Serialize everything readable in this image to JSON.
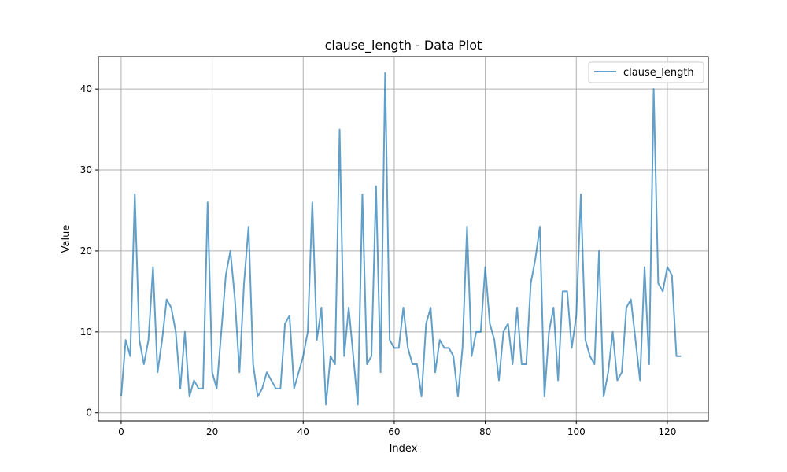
{
  "chart_data": {
    "type": "line",
    "title": "clause_length - Data Plot",
    "xlabel": "Index",
    "ylabel": "Value",
    "xlim": [
      -5,
      129
    ],
    "ylim": [
      -1,
      44
    ],
    "xticks": [
      0,
      20,
      40,
      60,
      80,
      100,
      120
    ],
    "yticks": [
      0,
      10,
      20,
      30,
      40
    ],
    "grid": true,
    "legend_position": "top-right",
    "series": [
      {
        "name": "clause_length",
        "color": "#1f77b4",
        "values": [
          2,
          9,
          7,
          27,
          9,
          6,
          9,
          18,
          5,
          9,
          14,
          13,
          10,
          3,
          10,
          2,
          4,
          3,
          3,
          26,
          5,
          3,
          10,
          17,
          20,
          14,
          5,
          16,
          23,
          6,
          2,
          3,
          5,
          4,
          3,
          3,
          11,
          12,
          3,
          5,
          7,
          10,
          26,
          9,
          13,
          1,
          7,
          6,
          35,
          7,
          13,
          7,
          1,
          27,
          6,
          7,
          28,
          5,
          42,
          9,
          8,
          8,
          13,
          8,
          6,
          6,
          2,
          11,
          13,
          5,
          9,
          8,
          8,
          7,
          2,
          8,
          23,
          7,
          10,
          10,
          18,
          11,
          9,
          4,
          10,
          11,
          6,
          13,
          6,
          6,
          16,
          19,
          23,
          2,
          10,
          13,
          4,
          15,
          15,
          8,
          12,
          27,
          9,
          7,
          6,
          20,
          2,
          5,
          10,
          4,
          5,
          13,
          14,
          9,
          4,
          18,
          6,
          40,
          16,
          15,
          18,
          17,
          7,
          7
        ]
      }
    ]
  }
}
